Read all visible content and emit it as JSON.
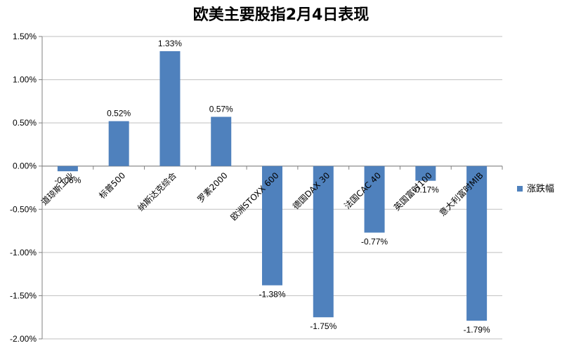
{
  "chart_data": {
    "type": "bar",
    "title": "欧美主要股指2月4日表现",
    "categories": [
      "道琼斯工业",
      "标普500",
      "纳斯达克综合",
      "罗素2000",
      "欧洲STOXX 600",
      "德国DAX 30",
      "法国CAC 40",
      "英国富时100",
      "意大利富时MIB"
    ],
    "series": [
      {
        "name": "涨跌幅",
        "values": [
          -0.06,
          0.52,
          1.33,
          0.57,
          -1.38,
          -1.75,
          -0.77,
          -0.17,
          -1.79
        ],
        "labels": [
          "-0.06%",
          "0.52%",
          "1.33%",
          "0.57%",
          "-1.38%",
          "-1.75%",
          "-0.77%",
          "-0.17%",
          "-1.79%"
        ]
      }
    ],
    "yticks": [
      "1.50%",
      "1.00%",
      "0.50%",
      "0.00%",
      "-0.50%",
      "-1.00%",
      "-1.50%",
      "-2.00%"
    ],
    "ylim": [
      -2.0,
      1.5
    ],
    "grid": true,
    "legend": "right",
    "bar_color": "#4F81BD"
  }
}
